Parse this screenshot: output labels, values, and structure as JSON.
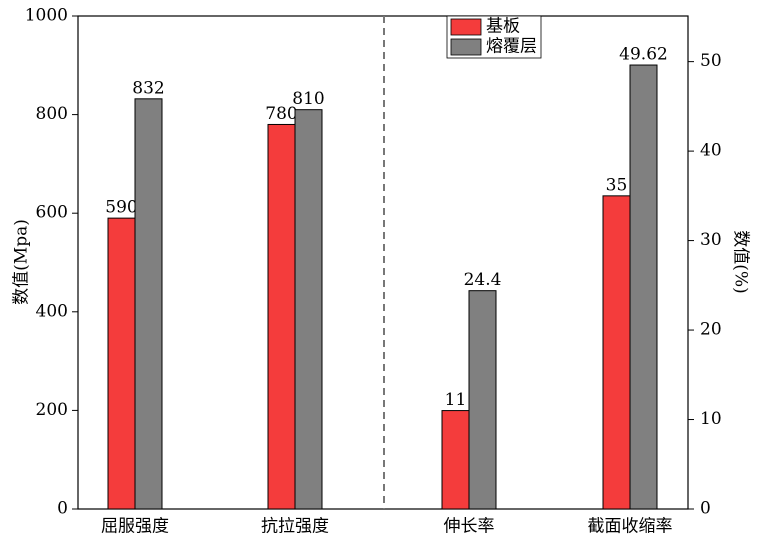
{
  "chart_data": {
    "type": "bar",
    "categories": [
      "屈服强度",
      "抗拉强度",
      "伸长率",
      "截面收缩率"
    ],
    "category_axes": [
      "y",
      "y",
      "y2",
      "y2"
    ],
    "series": [
      {
        "name": "基板",
        "color": "#f43c3c",
        "values": [
          590,
          780,
          11,
          35
        ]
      },
      {
        "name": "熔覆层",
        "color": "#808080",
        "values": [
          832,
          810,
          24.4,
          49.62
        ]
      }
    ],
    "ylabel": "数值(Mpa)",
    "y2label": "数值(%)",
    "ylim": [
      0,
      1000
    ],
    "yticks": [
      0,
      200,
      400,
      600,
      800,
      1000
    ],
    "y2lim": [
      0,
      55.1
    ],
    "y2ticks": [
      0,
      10,
      20,
      30,
      40,
      50
    ],
    "legend": "top"
  }
}
